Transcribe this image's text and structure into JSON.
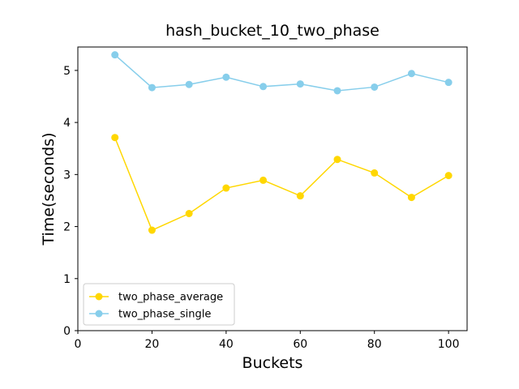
{
  "chart_data": {
    "type": "line",
    "title": "hash_bucket_10_two_phase",
    "xlabel": "Buckets",
    "ylabel": "Time(seconds)",
    "xlim": [
      0,
      105
    ],
    "ylim": [
      0,
      5.45
    ],
    "xticks": [
      0,
      20,
      40,
      60,
      80,
      100
    ],
    "yticks": [
      0,
      1,
      2,
      3,
      4,
      5
    ],
    "grid": false,
    "legend_position": "lower-left",
    "x": [
      10,
      20,
      30,
      40,
      50,
      60,
      70,
      80,
      90,
      100
    ],
    "series": [
      {
        "name": "two_phase_average",
        "color": "#FFD700",
        "marker": "circle",
        "values": [
          3.71,
          1.93,
          2.25,
          2.74,
          2.89,
          2.59,
          3.29,
          3.03,
          2.56,
          2.98
        ]
      },
      {
        "name": "two_phase_single",
        "color": "#87CEEB",
        "marker": "circle",
        "values": [
          5.3,
          4.67,
          4.73,
          4.87,
          4.69,
          4.74,
          4.61,
          4.68,
          4.94,
          4.77
        ]
      }
    ]
  }
}
